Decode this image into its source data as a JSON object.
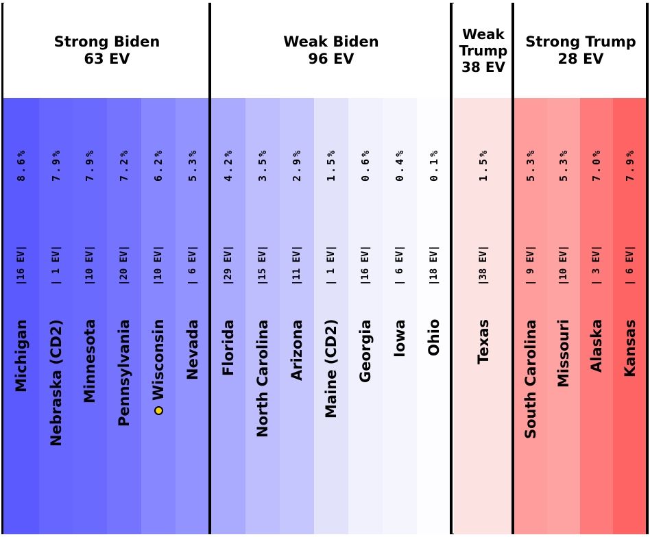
{
  "chart_data": {
    "type": "table",
    "groups": [
      {
        "name": "Strong Biden",
        "ev_label": "63 EV",
        "states": [
          0,
          1,
          2,
          3,
          4,
          5
        ]
      },
      {
        "name": "Weak Biden",
        "ev_label": "96 EV",
        "states": [
          6,
          7,
          8,
          9,
          10,
          11,
          12
        ]
      },
      {
        "name": "Weak\nTrump",
        "ev_label": "38 EV",
        "states": [
          13
        ]
      },
      {
        "name": "Strong Trump",
        "ev_label": "28 EV",
        "states": [
          14,
          15,
          16,
          17
        ]
      }
    ],
    "states": [
      {
        "name": "Michigan",
        "ev": "|16 EV|",
        "margin": "8.6%",
        "value": 8.6,
        "party": "D",
        "color": "#5a5aff"
      },
      {
        "name": "Nebraska (CD2)",
        "ev": "| 1 EV|",
        "margin": "7.9%",
        "value": 7.9,
        "party": "D",
        "color": "#6767ff"
      },
      {
        "name": "Minnesota",
        "ev": "|10 EV|",
        "margin": "7.9%",
        "value": 7.9,
        "party": "D",
        "color": "#6a6aff"
      },
      {
        "name": "Pennsylvania",
        "ev": "|20 EV|",
        "margin": "7.2%",
        "value": 7.2,
        "party": "D",
        "color": "#7474ff"
      },
      {
        "name": "Wisconsin",
        "ev": "|10 EV|",
        "margin": "6.2%",
        "value": 6.2,
        "party": "D",
        "color": "#8787ff",
        "marked": true
      },
      {
        "name": "Nevada",
        "ev": "| 6 EV|",
        "margin": "5.3%",
        "value": 5.3,
        "party": "D",
        "color": "#9393ff"
      },
      {
        "name": "Florida",
        "ev": "|29 EV|",
        "margin": "4.2%",
        "value": 4.2,
        "party": "D",
        "color": "#aaaaff"
      },
      {
        "name": "North Carolina",
        "ev": "|15 EV|",
        "margin": "3.5%",
        "value": 3.5,
        "party": "D",
        "color": "#bebeff"
      },
      {
        "name": "Arizona",
        "ev": "|11 EV|",
        "margin": "2.9%",
        "value": 2.9,
        "party": "D",
        "color": "#c6c6ff"
      },
      {
        "name": "Maine (CD2)",
        "ev": "| 1 EV|",
        "margin": "1.5%",
        "value": 1.5,
        "party": "D",
        "color": "#e2e2fb"
      },
      {
        "name": "Georgia",
        "ev": "|16 EV|",
        "margin": "0.6%",
        "value": 0.6,
        "party": "D",
        "color": "#f1f1fd"
      },
      {
        "name": "Iowa",
        "ev": "| 6 EV|",
        "margin": "0.4%",
        "value": 0.4,
        "party": "D",
        "color": "#f5f5fe"
      },
      {
        "name": "Ohio",
        "ev": "|18 EV|",
        "margin": "0.1%",
        "value": 0.1,
        "party": "D",
        "color": "#fdfdff"
      },
      {
        "name": "Texas",
        "ev": "|38 EV|",
        "margin": "1.5%",
        "value": 1.5,
        "party": "R",
        "color": "#fde2e2"
      },
      {
        "name": "South Carolina",
        "ev": "| 9 EV|",
        "margin": "5.3%",
        "value": 5.3,
        "party": "R",
        "color": "#ff9c9c"
      },
      {
        "name": "Missouri",
        "ev": "|10 EV|",
        "margin": "5.3%",
        "value": 5.3,
        "party": "R",
        "color": "#ffa2a2"
      },
      {
        "name": "Alaska",
        "ev": "| 3 EV|",
        "margin": "7.0%",
        "value": 7.0,
        "party": "R",
        "color": "#ff7b7b"
      },
      {
        "name": "Kansas",
        "ev": "| 6 EV|",
        "margin": "7.9%",
        "value": 7.9,
        "party": "R",
        "color": "#ff6464"
      }
    ]
  }
}
